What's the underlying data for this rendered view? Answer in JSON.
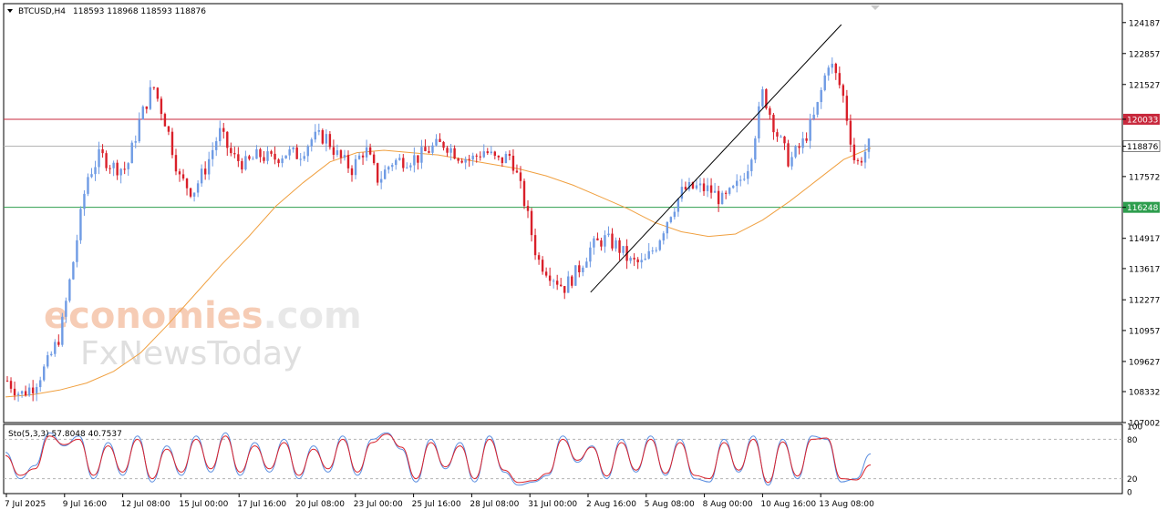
{
  "header": {
    "symbol": "BTCUSD,H4",
    "ohlc": "118593 118968 118593 118876",
    "stochastic": "Sto(5,3,3) 57.8048 40.7537"
  },
  "watermark": {
    "line1a": "economies",
    "line1b": ".com",
    "line2": "FxNewsToday"
  },
  "colors": {
    "bull": "#6f9be4",
    "bear": "#d9202a",
    "ma": "#f0a040",
    "resistance": "#c8283c",
    "support": "#2e9e4e",
    "current": "#b4b4b4",
    "trendline": "#000000",
    "stoch_main": "#5b8ee0",
    "stoch_signal": "#d9202a"
  },
  "chart_data": {
    "type": "candlestick",
    "symbol": "BTCUSD",
    "timeframe": "H4",
    "ylim": [
      107002,
      125000
    ],
    "y_ticks": [
      107002,
      108332,
      109627,
      110957,
      112277,
      113617,
      114917,
      116248,
      117572,
      118876,
      120033,
      121527,
      122857,
      124187
    ],
    "y_tick_labels": [
      "107002",
      "108332",
      "109627",
      "110957",
      "112277",
      "113617",
      "114917",
      "",
      "117572",
      "",
      "",
      "121527",
      "122857",
      "124187"
    ],
    "x_labels": [
      "7 Jul 2025",
      "9 Jul 16:00",
      "12 Jul 08:00",
      "15 Jul 00:00",
      "17 Jul 16:00",
      "20 Jul 08:00",
      "23 Jul 00:00",
      "25 Jul 16:00",
      "28 Jul 08:00",
      "31 Jul 00:00",
      "2 Aug 16:00",
      "5 Aug 08:00",
      "8 Aug 00:00",
      "10 Aug 16:00",
      "13 Aug 08:00"
    ],
    "levels": [
      {
        "name": "resistance",
        "value": 120033,
        "label": "120033"
      },
      {
        "name": "support",
        "value": 116248,
        "label": "116248"
      },
      {
        "name": "current",
        "value": 118876,
        "label": "118876"
      }
    ],
    "trendline": {
      "from": [
        133,
        112600
      ],
      "to": [
        190,
        124100
      ]
    },
    "ma_path": [
      108100,
      108200,
      108400,
      108700,
      109200,
      110000,
      111200,
      112500,
      113800,
      115000,
      116300,
      117300,
      118200,
      118600,
      118700,
      118600,
      118500,
      118300,
      118100,
      117900,
      117600,
      117200,
      116700,
      116200,
      115600,
      115200,
      115000,
      115100,
      115700,
      116500,
      117400,
      118300,
      118800
    ],
    "anchors": [
      108800,
      108200,
      108600,
      109500,
      110800,
      114000,
      117500,
      118500,
      118000,
      117900,
      120000,
      121500,
      119800,
      117500,
      116900,
      118000,
      119500,
      118400,
      118100,
      118500,
      118300,
      118600,
      118500,
      119200,
      119300,
      118400,
      117900,
      118800,
      117400,
      118200,
      118300,
      118400,
      118800,
      119000,
      118500,
      118300,
      118700,
      118200,
      118500,
      116500,
      114000,
      113400,
      112800,
      113500,
      114500,
      114900,
      114600,
      113900,
      113800,
      114700,
      116000,
      117000,
      117100,
      117000,
      116500,
      117100,
      118200,
      121200,
      119500,
      118200,
      119000,
      120300,
      122600,
      121200,
      118000,
      118900
    ],
    "stoch_main": [
      60,
      20,
      40,
      90,
      70,
      85,
      20,
      75,
      25,
      85,
      15,
      70,
      25,
      85,
      30,
      90,
      25,
      75,
      30,
      80,
      20,
      70,
      30,
      85,
      25,
      80,
      90,
      65,
      15,
      80,
      35,
      75,
      15,
      85,
      30,
      10,
      15,
      25,
      85,
      45,
      70,
      20,
      80,
      30,
      85,
      25,
      80,
      20,
      15,
      80,
      30,
      85,
      10,
      80,
      20,
      85,
      80,
      15,
      20,
      57.8
    ],
    "stoch_signal": [
      55,
      25,
      35,
      85,
      72,
      80,
      25,
      70,
      30,
      80,
      20,
      65,
      30,
      80,
      35,
      85,
      30,
      70,
      35,
      75,
      25,
      65,
      35,
      80,
      30,
      75,
      88,
      68,
      20,
      75,
      38,
      70,
      20,
      80,
      33,
      14,
      17,
      28,
      80,
      48,
      68,
      24,
      75,
      33,
      80,
      28,
      75,
      25,
      20,
      75,
      33,
      80,
      14,
      76,
      24,
      80,
      82,
      20,
      18,
      40.8
    ]
  }
}
